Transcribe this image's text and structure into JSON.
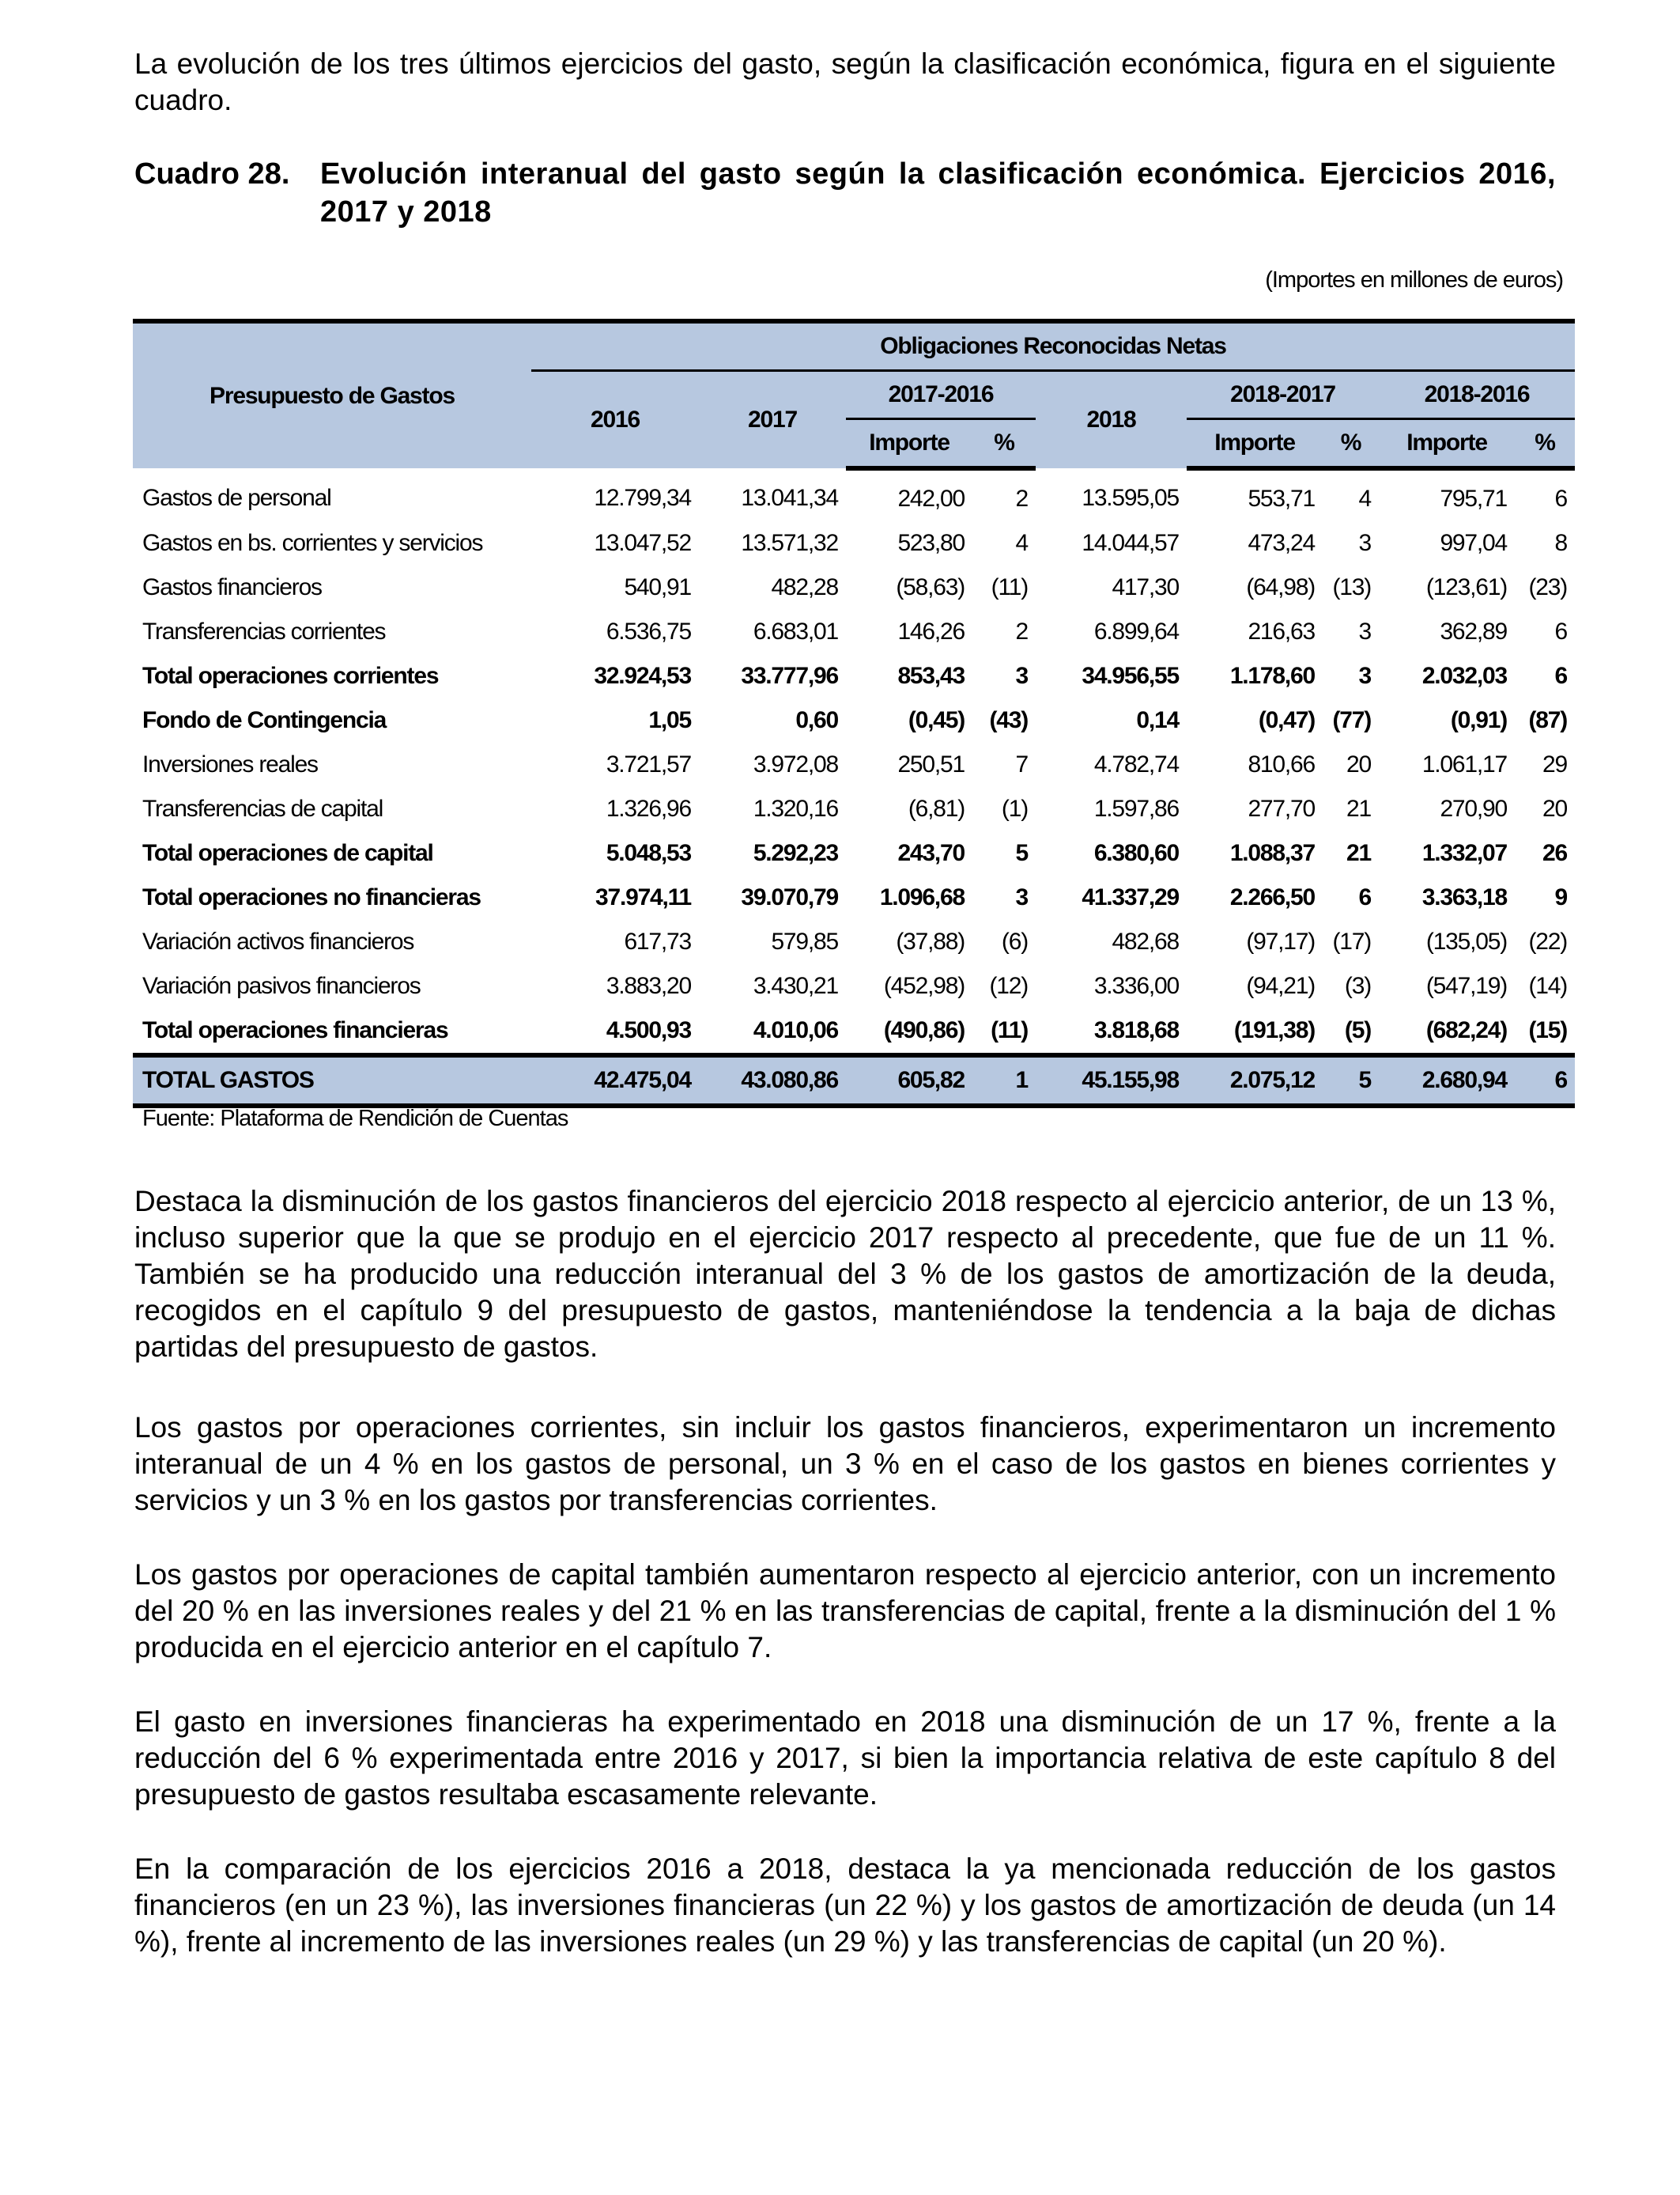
{
  "intro": "La evolución de los tres últimos ejercicios del gasto, según la clasificación económica, figura en el siguiente cuadro.",
  "table_title": {
    "number": "Cuadro 28.",
    "text": "Evolución interanual del gasto según la clasificación económica. Ejercicios 2016, 2017 y 2018"
  },
  "units_note": "(Importes en millones de euros)",
  "table": {
    "header": {
      "row_label": "Presupuesto de Gastos",
      "group": "Obligaciones Reconocidas Netas",
      "y2016": "2016",
      "y2017": "2017",
      "y2018": "2018",
      "d1": "2017-2016",
      "d2": "2018-2017",
      "d3": "2018-2016",
      "importe": "Importe",
      "pct": "%"
    },
    "rows": [
      {
        "label": "Gastos de personal",
        "bold": false,
        "values": [
          "12.799,34",
          "13.041,34",
          "242,00",
          "2",
          "13.595,05",
          "553,71",
          "4",
          "795,71",
          "6"
        ]
      },
      {
        "label": "Gastos en bs. corrientes y servicios",
        "bold": false,
        "values": [
          "13.047,52",
          "13.571,32",
          "523,80",
          "4",
          "14.044,57",
          "473,24",
          "3",
          "997,04",
          "8"
        ]
      },
      {
        "label": "Gastos financieros",
        "bold": false,
        "values": [
          "540,91",
          "482,28",
          "(58,63)",
          "(11)",
          "417,30",
          "(64,98)",
          "(13)",
          "(123,61)",
          "(23)"
        ]
      },
      {
        "label": "Transferencias corrientes",
        "bold": false,
        "values": [
          "6.536,75",
          "6.683,01",
          "146,26",
          "2",
          "6.899,64",
          "216,63",
          "3",
          "362,89",
          "6"
        ]
      },
      {
        "label": "Total operaciones corrientes",
        "bold": true,
        "values": [
          "32.924,53",
          "33.777,96",
          "853,43",
          "3",
          "34.956,55",
          "1.178,60",
          "3",
          "2.032,03",
          "6"
        ]
      },
      {
        "label": "Fondo de Contingencia",
        "bold": true,
        "values": [
          "1,05",
          "0,60",
          "(0,45)",
          "(43)",
          "0,14",
          "(0,47)",
          "(77)",
          "(0,91)",
          "(87)"
        ]
      },
      {
        "label": "Inversiones reales",
        "bold": false,
        "values": [
          "3.721,57",
          "3.972,08",
          "250,51",
          "7",
          "4.782,74",
          "810,66",
          "20",
          "1.061,17",
          "29"
        ]
      },
      {
        "label": "Transferencias de capital",
        "bold": false,
        "values": [
          "1.326,96",
          "1.320,16",
          "(6,81)",
          "(1)",
          "1.597,86",
          "277,70",
          "21",
          "270,90",
          "20"
        ]
      },
      {
        "label": "Total operaciones de capital",
        "bold": true,
        "values": [
          "5.048,53",
          "5.292,23",
          "243,70",
          "5",
          "6.380,60",
          "1.088,37",
          "21",
          "1.332,07",
          "26"
        ]
      },
      {
        "label": "Total operaciones no financieras",
        "bold": true,
        "values": [
          "37.974,11",
          "39.070,79",
          "1.096,68",
          "3",
          "41.337,29",
          "2.266,50",
          "6",
          "3.363,18",
          "9"
        ]
      },
      {
        "label": "Variación activos financieros",
        "bold": false,
        "values": [
          "617,73",
          "579,85",
          "(37,88)",
          "(6)",
          "482,68",
          "(97,17)",
          "(17)",
          "(135,05)",
          "(22)"
        ]
      },
      {
        "label": "Variación pasivos financieros",
        "bold": false,
        "values": [
          "3.883,20",
          "3.430,21",
          "(452,98)",
          "(12)",
          "3.336,00",
          "(94,21)",
          "(3)",
          "(547,19)",
          "(14)"
        ]
      },
      {
        "label": "Total operaciones financieras",
        "bold": true,
        "values": [
          "4.500,93",
          "4.010,06",
          "(490,86)",
          "(11)",
          "3.818,68",
          "(191,38)",
          "(5)",
          "(682,24)",
          "(15)"
        ]
      }
    ],
    "total": {
      "label": "TOTAL GASTOS",
      "values": [
        "42.475,04",
        "43.080,86",
        "605,82",
        "1",
        "45.155,98",
        "2.075,12",
        "5",
        "2.680,94",
        "6"
      ]
    },
    "header_color": "#b7c8e0"
  },
  "source": "Fuente: Plataforma de Rendición de Cuentas",
  "paragraphs": [
    "Destaca la disminución de los gastos financieros del ejercicio 2018 respecto al ejercicio anterior, de un 13 %, incluso superior que la que se produjo en el ejercicio 2017 respecto al precedente, que fue de un 11 %. También se ha producido una reducción interanual del 3 % de los gastos de amortización de la deuda, recogidos en el capítulo 9 del presupuesto de gastos, manteniéndose la tendencia a la baja de dichas partidas del presupuesto de gastos.",
    "Los gastos por operaciones corrientes, sin incluir los gastos financieros, experimentaron un incremento interanual de un 4 % en los gastos de personal, un 3 % en el caso de los gastos en bienes corrientes y servicios y un 3 % en los gastos por transferencias corrientes.",
    "Los gastos por operaciones de capital también aumentaron respecto al ejercicio anterior, con un incremento del 20 % en las inversiones reales y del 21 % en las transferencias de capital, frente a la disminución del 1 % producida en el ejercicio anterior en el capítulo 7.",
    "El gasto en inversiones financieras ha experimentado en 2018 una disminución de un 17 %, frente a la reducción del 6 % experimentada entre 2016 y 2017, si bien la importancia relativa de este capítulo 8 del presupuesto de gastos resultaba escasamente relevante.",
    "En la comparación de los ejercicios 2016 a 2018, destaca la ya mencionada reducción de los gastos financieros (en un 23 %), las inversiones financieras (un 22 %) y los gastos de amortización de deuda (un 14 %), frente al incremento de las inversiones reales (un 29 %) y las transferencias de capital (un 20 %)."
  ]
}
